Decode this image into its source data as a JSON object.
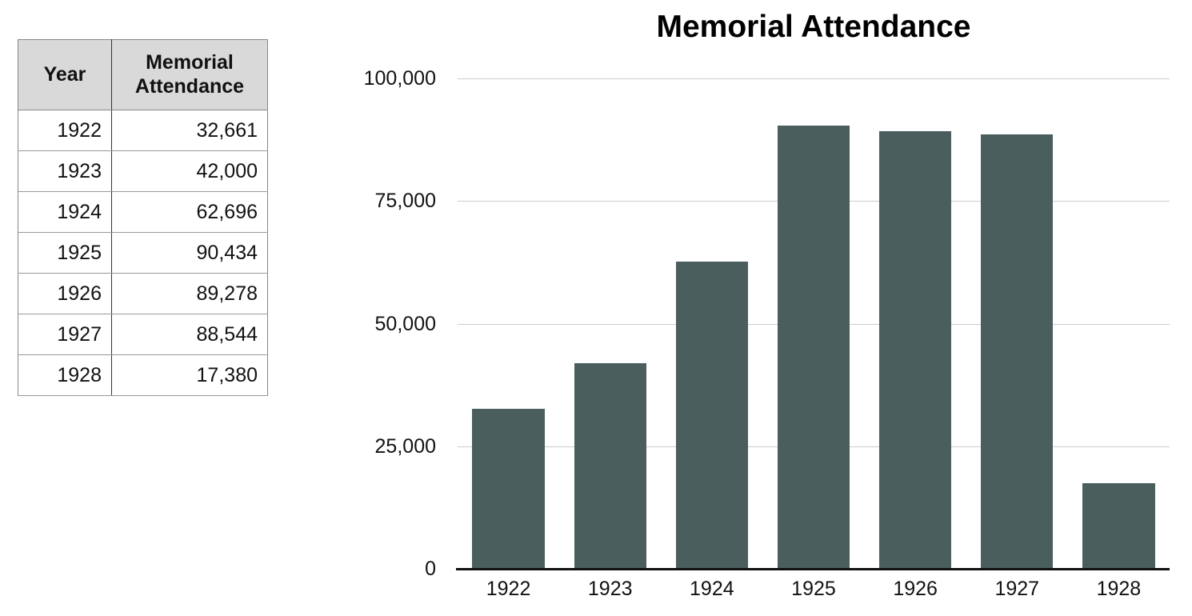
{
  "table": {
    "headers": [
      "Year",
      "Memorial Attendance"
    ],
    "rows": [
      {
        "year": "1922",
        "value": "32,661"
      },
      {
        "year": "1923",
        "value": "42,000"
      },
      {
        "year": "1924",
        "value": "62,696"
      },
      {
        "year": "1925",
        "value": "90,434"
      },
      {
        "year": "1926",
        "value": "89,278"
      },
      {
        "year": "1927",
        "value": "88,544"
      },
      {
        "year": "1928",
        "value": "17,380"
      }
    ],
    "header_bg": "#d9d9d9"
  },
  "chart_data": {
    "type": "bar",
    "title": "Memorial Attendance",
    "categories": [
      "1922",
      "1923",
      "1924",
      "1925",
      "1926",
      "1927",
      "1928"
    ],
    "values": [
      32661,
      42000,
      62696,
      90434,
      89278,
      88544,
      17380
    ],
    "xlabel": "",
    "ylabel": "",
    "ylim": [
      0,
      100000
    ],
    "yticks": [
      0,
      25000,
      50000,
      75000,
      100000
    ],
    "ytick_labels": [
      "0",
      "25,000",
      "50,000",
      "75,000",
      "100,000"
    ],
    "grid": "horizontal gridlines at 25,000 intervals",
    "legend": "none",
    "bar_color": "#4a5e5e",
    "gridline_color": "#cccccc",
    "axis_color": "#111111"
  }
}
